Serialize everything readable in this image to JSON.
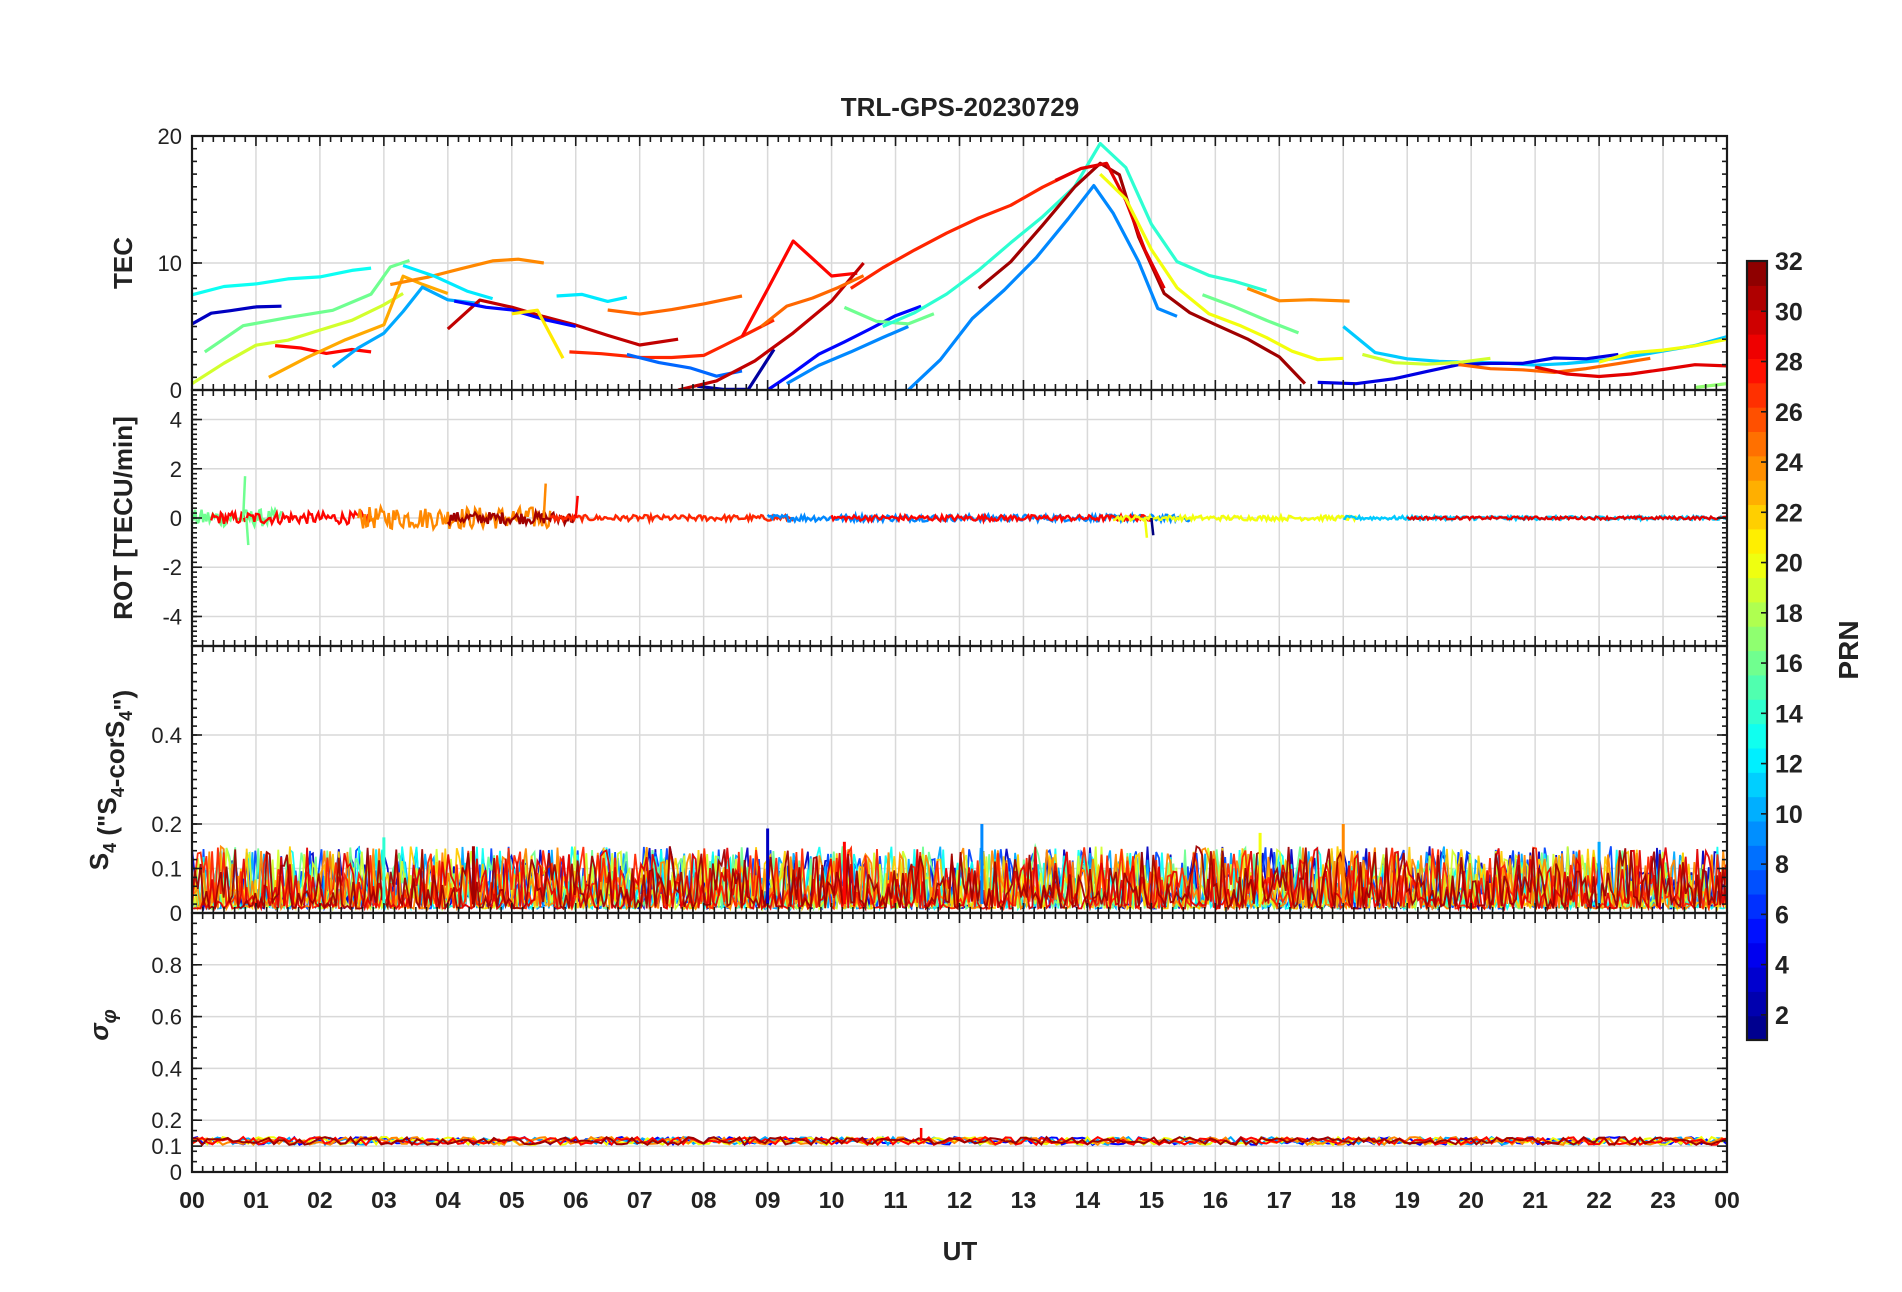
{
  "chart_data": [
    {
      "type": "line",
      "title": "TRL-GPS-20230729",
      "ylabel": "TEC",
      "ylim": [
        0,
        20
      ],
      "yticks": [
        0,
        10,
        20
      ],
      "xlim": [
        0,
        24
      ],
      "xticks": [
        "00",
        "01",
        "02",
        "03",
        "04",
        "05",
        "06",
        "07",
        "08",
        "09",
        "10",
        "11",
        "12",
        "13",
        "14",
        "15",
        "16",
        "17",
        "18",
        "19",
        "20",
        "21",
        "22",
        "23",
        "00"
      ],
      "grid": true,
      "color_by": "PRN",
      "series": [
        {
          "prn": 3,
          "x": [
            0.0,
            0.3,
            0.6,
            1.0,
            1.4
          ],
          "y": [
            5.2,
            6.0,
            6.3,
            6.5,
            6.6
          ]
        },
        {
          "prn": 13,
          "x": [
            0.0,
            0.5,
            1.0,
            1.5,
            2.0,
            2.5,
            2.8
          ],
          "y": [
            7.5,
            8.0,
            8.3,
            8.7,
            9.0,
            9.3,
            9.6
          ]
        },
        {
          "prn": 16,
          "x": [
            0.2,
            0.8,
            1.5,
            2.2,
            2.8,
            3.1,
            3.4
          ],
          "y": [
            3.0,
            5.0,
            5.6,
            6.2,
            7.6,
            9.6,
            10.2
          ]
        },
        {
          "prn": 19,
          "x": [
            0.0,
            0.5,
            1.0,
            1.5,
            2.0,
            2.5,
            3.0,
            3.3
          ],
          "y": [
            0.5,
            2.2,
            3.5,
            4.0,
            4.8,
            5.4,
            6.6,
            7.6
          ]
        },
        {
          "prn": 28,
          "x": [
            1.3,
            1.7,
            2.1,
            2.5,
            2.8
          ],
          "y": [
            3.5,
            3.2,
            3.0,
            3.2,
            3.0
          ]
        },
        {
          "prn": 23,
          "x": [
            1.2,
            1.8,
            2.4,
            3.0,
            3.3,
            3.6,
            4.0
          ],
          "y": [
            1.0,
            2.5,
            4.0,
            5.2,
            9.0,
            8.2,
            7.6
          ]
        },
        {
          "prn": 10,
          "x": [
            2.2,
            2.6,
            3.0,
            3.3,
            3.6,
            4.0,
            4.5
          ],
          "y": [
            1.8,
            3.2,
            4.5,
            6.2,
            8.0,
            7.2,
            6.8
          ]
        },
        {
          "prn": 24,
          "x": [
            3.1,
            3.7,
            4.2,
            4.7,
            5.1,
            5.5
          ],
          "y": [
            8.3,
            9.0,
            9.6,
            10.2,
            10.3,
            10.0
          ]
        },
        {
          "prn": 12,
          "x": [
            3.3,
            3.8,
            4.3,
            4.7
          ],
          "y": [
            9.8,
            8.8,
            7.8,
            7.2
          ]
        },
        {
          "prn": 30,
          "x": [
            4.0,
            4.5,
            5.0,
            5.5,
            6.0,
            6.5,
            7.0,
            7.6
          ],
          "y": [
            4.8,
            7.0,
            6.6,
            5.8,
            5.0,
            4.2,
            3.6,
            4.0
          ]
        },
        {
          "prn": 5,
          "x": [
            4.1,
            4.6,
            5.0,
            5.5,
            6.0
          ],
          "y": [
            7.0,
            6.5,
            6.2,
            5.5,
            5.0
          ]
        },
        {
          "prn": 21,
          "x": [
            5.0,
            5.4,
            5.8
          ],
          "y": [
            6.0,
            6.4,
            2.5
          ]
        },
        {
          "prn": 12,
          "x": [
            5.7,
            6.1,
            6.5,
            6.8
          ],
          "y": [
            7.4,
            7.5,
            7.1,
            7.3
          ]
        },
        {
          "prn": 27,
          "x": [
            5.9,
            6.4,
            7.0,
            7.5,
            8.0,
            8.3,
            8.7,
            9.1
          ],
          "y": [
            3.0,
            2.8,
            2.6,
            2.5,
            2.8,
            3.5,
            4.5,
            5.5
          ]
        },
        {
          "prn": 25,
          "x": [
            6.5,
            7.0,
            7.5,
            8.0,
            8.6
          ],
          "y": [
            6.3,
            6.0,
            6.2,
            6.8,
            7.4
          ]
        },
        {
          "prn": 8,
          "x": [
            6.8,
            7.3,
            7.8,
            8.2,
            8.6
          ],
          "y": [
            2.8,
            2.3,
            1.8,
            1.2,
            1.5
          ]
        },
        {
          "prn": 2,
          "x": [
            7.9,
            8.3,
            8.7,
            9.1
          ],
          "y": [
            0.3,
            0.0,
            0.2,
            3.2
          ]
        },
        {
          "prn": 28,
          "x": [
            8.6,
            9.0,
            9.4,
            10.0,
            10.4
          ],
          "y": [
            4.2,
            8.0,
            11.8,
            9.0,
            9.2
          ]
        },
        {
          "prn": 30,
          "x": [
            7.6,
            8.2,
            8.8,
            9.4,
            10.0,
            10.5
          ],
          "y": [
            0.0,
            0.8,
            2.2,
            4.5,
            7.0,
            10.0
          ]
        },
        {
          "prn": 25,
          "x": [
            8.9,
            9.3,
            9.7,
            10.1,
            10.5
          ],
          "y": [
            5.0,
            6.5,
            7.2,
            8.0,
            9.0
          ]
        },
        {
          "prn": 5,
          "x": [
            9.0,
            9.4,
            9.8,
            10.2,
            10.6,
            11.0,
            11.4
          ],
          "y": [
            0.0,
            1.5,
            2.8,
            3.8,
            4.8,
            5.8,
            6.6
          ]
        },
        {
          "prn": 9,
          "x": [
            9.3,
            9.8,
            10.3,
            10.8,
            11.2
          ],
          "y": [
            0.5,
            2.0,
            3.0,
            4.0,
            5.0
          ]
        },
        {
          "prn": 16,
          "x": [
            10.2,
            10.7,
            11.2,
            11.6
          ],
          "y": [
            6.5,
            5.5,
            5.2,
            6.0
          ]
        },
        {
          "prn": 27,
          "x": [
            10.3,
            10.8,
            11.3,
            11.8,
            12.3,
            12.8,
            13.3,
            13.8
          ],
          "y": [
            8.0,
            9.5,
            11.0,
            12.5,
            13.5,
            14.5,
            16.0,
            17.2
          ]
        },
        {
          "prn": 14,
          "x": [
            10.8,
            11.3,
            11.8,
            12.3,
            12.8,
            13.3,
            13.8,
            14.2,
            14.6,
            15.0,
            15.4,
            15.9,
            16.3,
            16.8
          ],
          "y": [
            5.0,
            6.0,
            7.5,
            9.5,
            11.5,
            13.5,
            16.0,
            19.5,
            17.5,
            13.0,
            10.0,
            9.0,
            8.5,
            7.8
          ]
        },
        {
          "prn": 9,
          "x": [
            11.2,
            11.7,
            12.2,
            12.7,
            13.2,
            13.7,
            14.1,
            14.4,
            14.8,
            15.1,
            15.4
          ],
          "y": [
            0.0,
            2.5,
            5.5,
            8.0,
            10.5,
            13.5,
            16.0,
            14.0,
            10.0,
            6.5,
            5.8
          ]
        },
        {
          "prn": 31,
          "x": [
            12.3,
            12.8,
            13.3,
            13.8,
            14.2,
            14.5,
            14.8,
            15.2,
            15.6,
            16.0,
            16.5,
            17.0,
            17.4
          ],
          "y": [
            8.0,
            10.0,
            13.0,
            16.0,
            18.0,
            17.0,
            12.0,
            7.5,
            6.0,
            5.0,
            4.0,
            2.5,
            0.5
          ]
        },
        {
          "prn": 29,
          "x": [
            13.5,
            13.9,
            14.3,
            14.6,
            14.9,
            15.2
          ],
          "y": [
            16.5,
            17.5,
            18.0,
            15.0,
            11.0,
            8.0
          ]
        },
        {
          "prn": 20,
          "x": [
            14.2,
            14.6,
            15.0,
            15.4,
            15.9,
            16.4,
            16.8,
            17.2,
            17.6,
            18.0
          ],
          "y": [
            17.0,
            15.0,
            11.0,
            8.0,
            6.0,
            5.0,
            4.0,
            3.0,
            2.5,
            2.5
          ]
        },
        {
          "prn": 24,
          "x": [
            16.5,
            17.0,
            17.5,
            18.1
          ],
          "y": [
            8.0,
            7.0,
            7.2,
            7.0
          ]
        },
        {
          "prn": 16,
          "x": [
            15.8,
            16.3,
            16.8,
            17.3
          ],
          "y": [
            7.5,
            6.5,
            5.5,
            4.5
          ]
        },
        {
          "prn": 11,
          "x": [
            18.0,
            18.5,
            19.0,
            19.5,
            20.0,
            20.5,
            21.0,
            21.5,
            22.0,
            22.5,
            23.0,
            23.5,
            24.0
          ],
          "y": [
            5.0,
            3.0,
            2.4,
            2.3,
            2.2,
            2.2,
            2.0,
            2.2,
            2.3,
            2.5,
            3.0,
            3.5,
            4.2
          ]
        },
        {
          "prn": 4,
          "x": [
            17.6,
            18.2,
            18.8,
            19.3,
            19.8,
            20.3,
            20.8,
            21.3,
            21.8,
            22.3
          ],
          "y": [
            0.6,
            0.4,
            0.8,
            1.5,
            2.0,
            2.1,
            2.2,
            2.4,
            2.5,
            2.8
          ]
        },
        {
          "prn": 19,
          "x": [
            18.3,
            18.8,
            19.3,
            19.8,
            20.3
          ],
          "y": [
            2.8,
            2.3,
            2.0,
            2.2,
            2.5
          ]
        },
        {
          "prn": 25,
          "x": [
            19.8,
            20.3,
            20.8,
            21.3,
            21.8,
            22.3,
            22.8
          ],
          "y": [
            2.0,
            1.8,
            1.7,
            1.5,
            1.8,
            2.0,
            2.5
          ]
        },
        {
          "prn": 29,
          "x": [
            21.0,
            21.5,
            22.0,
            22.5,
            23.0,
            23.5,
            24.0
          ],
          "y": [
            1.8,
            1.2,
            1.0,
            1.3,
            1.7,
            2.0,
            1.9
          ]
        },
        {
          "prn": 20,
          "x": [
            22.0,
            22.5,
            23.0,
            23.5,
            24.0
          ],
          "y": [
            2.2,
            2.8,
            3.2,
            3.6,
            4.0
          ]
        },
        {
          "prn": 17,
          "x": [
            23.5,
            24.0
          ],
          "y": [
            0.2,
            0.5
          ]
        }
      ]
    },
    {
      "type": "line",
      "ylabel": "ROT [TECU/min]",
      "ylim": [
        -5.2,
        5.2
      ],
      "yticks": [
        -4,
        -2,
        0,
        2,
        4
      ],
      "xlim": [
        0,
        24
      ],
      "grid": true,
      "color_by": "PRN",
      "bursts": [
        {
          "x0": 0.0,
          "x1": 1.4,
          "amp": 0.35,
          "prn": 16
        },
        {
          "x0": 0.3,
          "x1": 2.8,
          "amp": 0.25,
          "prn": 28
        },
        {
          "x0": 2.6,
          "x1": 5.6,
          "amp": 0.45,
          "prn": 24
        },
        {
          "x0": 4.0,
          "x1": 6.0,
          "amp": 0.25,
          "prn": 31
        },
        {
          "x0": 5.6,
          "x1": 9.4,
          "amp": 0.12,
          "prn": 27
        },
        {
          "x0": 9.0,
          "x1": 15.6,
          "amp": 0.14,
          "prn": 9
        },
        {
          "x0": 10.0,
          "x1": 15.0,
          "amp": 0.12,
          "prn": 28
        },
        {
          "x0": 14.4,
          "x1": 18.2,
          "amp": 0.1,
          "prn": 20
        },
        {
          "x0": 18.0,
          "x1": 24.0,
          "amp": 0.08,
          "prn": 11
        },
        {
          "x0": 19.0,
          "x1": 24.0,
          "amp": 0.06,
          "prn": 29
        }
      ],
      "spikes": [
        {
          "x": 0.8,
          "y": 1.7,
          "prn": 16
        },
        {
          "x": 0.85,
          "y": -1.1,
          "prn": 16
        },
        {
          "x": 5.5,
          "y": 1.4,
          "prn": 24
        },
        {
          "x": 6.0,
          "y": 0.9,
          "prn": 28
        },
        {
          "x": 14.9,
          "y": -0.8,
          "prn": 20
        },
        {
          "x": 15.0,
          "y": -0.7,
          "prn": 1
        }
      ]
    },
    {
      "type": "line",
      "ylabel": "S4 (\"S4-corS4\")",
      "ylim": [
        0,
        0.6
      ],
      "yticks": [
        0,
        0.1,
        0.2,
        0.4
      ],
      "xlim": [
        0,
        24
      ],
      "grid": true,
      "color_by": "PRN",
      "typical_range": [
        0.01,
        0.15
      ],
      "peaks": [
        {
          "x": 9.0,
          "y": 0.19,
          "prn": 3
        },
        {
          "x": 12.35,
          "y": 0.2,
          "prn": 9
        },
        {
          "x": 18.0,
          "y": 0.2,
          "prn": 24
        },
        {
          "x": 3.0,
          "y": 0.17,
          "prn": 14
        },
        {
          "x": 4.4,
          "y": 0.15,
          "prn": 31
        },
        {
          "x": 16.7,
          "y": 0.18,
          "prn": 20
        },
        {
          "x": 10.2,
          "y": 0.16,
          "prn": 28
        },
        {
          "x": 22.0,
          "y": 0.16,
          "prn": 10
        }
      ]
    },
    {
      "type": "line",
      "ylabel": "σφ",
      "ylim": [
        0,
        1
      ],
      "yticks": [
        0,
        0.1,
        0.2,
        0.4,
        0.6,
        0.8
      ],
      "xlabel": "UT",
      "xlim": [
        0,
        24
      ],
      "grid": true,
      "color_by": "PRN",
      "baseline": 0.12,
      "spikes": [
        {
          "x": 11.4,
          "y": 0.17,
          "prn": 28
        }
      ]
    }
  ],
  "colorbar": {
    "label": "PRN",
    "min": 1,
    "max": 32,
    "ticks": [
      2,
      4,
      6,
      8,
      10,
      12,
      14,
      16,
      18,
      20,
      22,
      24,
      26,
      28,
      30,
      32
    ],
    "colormap": "jet",
    "levels": 32
  }
}
